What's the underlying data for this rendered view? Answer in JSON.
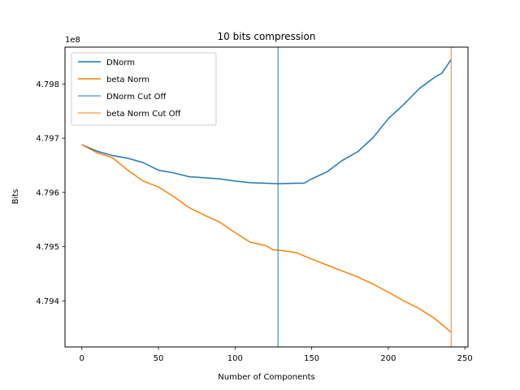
{
  "chart_data": {
    "type": "line",
    "title": "10 bits compression",
    "xlabel": "Number of Components",
    "ylabel": "Bits",
    "y_offset_label": "1e8",
    "xlim": [
      -11,
      252
    ],
    "ylim": [
      4.79315,
      4.79868
    ],
    "xticks": [
      0,
      50,
      100,
      150,
      200,
      250
    ],
    "xtick_labels": [
      "0",
      "50",
      "100",
      "150",
      "200",
      "250"
    ],
    "yticks": [
      4.794,
      4.795,
      4.796,
      4.797,
      4.798
    ],
    "ytick_labels": [
      "4.794",
      "4.795",
      "4.796",
      "4.797",
      "4.798"
    ],
    "grid": false,
    "legend_position": "top-left",
    "series": [
      {
        "name": "DNorm",
        "color": "#1f77b4",
        "points": [
          [
            0,
            4.79688
          ],
          [
            10,
            4.79676
          ],
          [
            20,
            4.79668
          ],
          [
            30,
            4.79663
          ],
          [
            40,
            4.79655
          ],
          [
            50,
            4.79641
          ],
          [
            60,
            4.79636
          ],
          [
            70,
            4.79629
          ],
          [
            80,
            4.79627
          ],
          [
            90,
            4.79625
          ],
          [
            100,
            4.79621
          ],
          [
            110,
            4.79618
          ],
          [
            120,
            4.79617
          ],
          [
            128,
            4.79616
          ],
          [
            140,
            4.79617
          ],
          [
            145,
            4.79617
          ],
          [
            150,
            4.79625
          ],
          [
            160,
            4.79638
          ],
          [
            170,
            4.79659
          ],
          [
            180,
            4.79675
          ],
          [
            190,
            4.79701
          ],
          [
            200,
            4.79736
          ],
          [
            210,
            4.79762
          ],
          [
            220,
            4.79791
          ],
          [
            230,
            4.79812
          ],
          [
            235,
            4.7982
          ],
          [
            241,
            4.79845
          ]
        ]
      },
      {
        "name": "beta Norm",
        "color": "#ff7f0e",
        "points": [
          [
            0,
            4.79688
          ],
          [
            10,
            4.79673
          ],
          [
            20,
            4.79664
          ],
          [
            30,
            4.79641
          ],
          [
            40,
            4.79621
          ],
          [
            50,
            4.7961
          ],
          [
            60,
            4.79592
          ],
          [
            70,
            4.79572
          ],
          [
            80,
            4.79558
          ],
          [
            90,
            4.79545
          ],
          [
            100,
            4.79526
          ],
          [
            110,
            4.79508
          ],
          [
            120,
            4.79502
          ],
          [
            125,
            4.79494
          ],
          [
            130,
            4.79493
          ],
          [
            140,
            4.79489
          ],
          [
            150,
            4.79477
          ],
          [
            160,
            4.79466
          ],
          [
            170,
            4.79455
          ],
          [
            180,
            4.79444
          ],
          [
            190,
            4.79431
          ],
          [
            200,
            4.79416
          ],
          [
            210,
            4.794
          ],
          [
            220,
            4.79386
          ],
          [
            230,
            4.79368
          ],
          [
            241,
            4.79342
          ]
        ]
      }
    ],
    "vlines": [
      {
        "name": "DNorm Cut Off",
        "x": 128,
        "color": "#1f77b4"
      },
      {
        "name": "beta Norm Cut Off",
        "x": 241,
        "color": "#ff7f0e"
      }
    ]
  }
}
